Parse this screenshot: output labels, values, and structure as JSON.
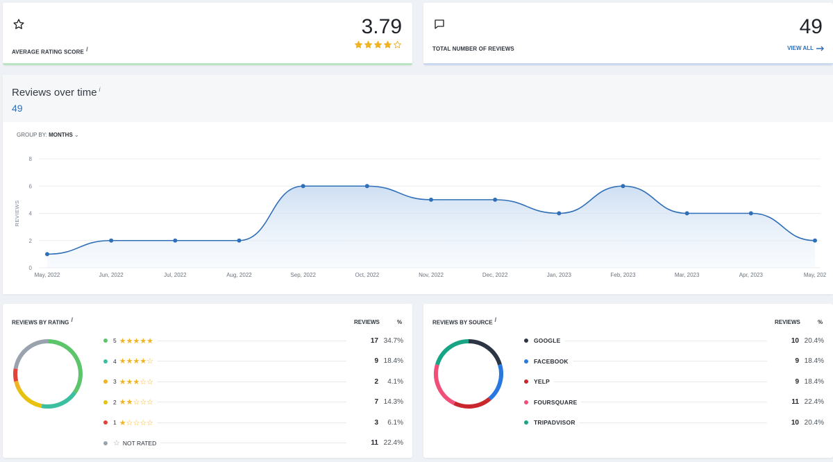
{
  "kpi_rating": {
    "label": "AVERAGE RATING SCORE",
    "info": "i",
    "value": "3.79",
    "stars": 3.79,
    "star_color": "#f0b323"
  },
  "kpi_total": {
    "label": "TOTAL NUMBER OF REVIEWS",
    "value": "49",
    "link": "VIEW ALL"
  },
  "over_time": {
    "title": "Reviews over time",
    "info": "i",
    "count": "49",
    "group_by_label": "GROUP BY:",
    "group_by_value": "MONTHS"
  },
  "chart_data": {
    "type": "area",
    "ylabel": "REVIEWS",
    "ylim": [
      0,
      8
    ],
    "yticks": [
      0,
      2,
      4,
      6,
      8
    ],
    "categories": [
      "May, 2022",
      "Jun, 2022",
      "Jul, 2022",
      "Aug, 2022",
      "Sep, 2022",
      "Oct, 2022",
      "Nov, 2022",
      "Dec, 2022",
      "Jan, 2023",
      "Feb, 2023",
      "Mar, 2023",
      "Apr, 2023",
      "May, 202"
    ],
    "values": [
      1,
      2,
      2,
      2,
      6,
      6,
      5,
      5,
      4,
      6,
      4,
      4,
      2
    ],
    "color": "#2f6fb7",
    "grid": true
  },
  "by_rating": {
    "title": "REVIEWS BY RATING",
    "info": "i",
    "col_reviews": "REVIEWS",
    "col_pct": "%",
    "rows": [
      {
        "label": "5",
        "stars": 5,
        "count": "17",
        "pct": "34.7%",
        "value": 17,
        "color": "#5cc46a"
      },
      {
        "label": "4",
        "stars": 4,
        "count": "9",
        "pct": "18.4%",
        "value": 9,
        "color": "#3cbfa0"
      },
      {
        "label": "3",
        "stars": 3,
        "count": "2",
        "pct": "4.1%",
        "value": 2,
        "color": "#f0b323"
      },
      {
        "label": "2",
        "stars": 2,
        "count": "7",
        "pct": "14.3%",
        "value": 7,
        "color": "#e6c20f"
      },
      {
        "label": "1",
        "stars": 1,
        "count": "3",
        "pct": "6.1%",
        "value": 3,
        "color": "#e0433a"
      },
      {
        "label": "NOT RATED",
        "stars": 0,
        "count": "11",
        "pct": "22.4%",
        "value": 11,
        "color": "#9aa3ad"
      }
    ]
  },
  "by_source": {
    "title": "REVIEWS BY SOURCE",
    "info": "i",
    "col_reviews": "REVIEWS",
    "col_pct": "%",
    "rows": [
      {
        "label": "GOOGLE",
        "count": "10",
        "pct": "20.4%",
        "value": 10,
        "color": "#2c3544"
      },
      {
        "label": "FACEBOOK",
        "count": "9",
        "pct": "18.4%",
        "value": 9,
        "color": "#2878e0"
      },
      {
        "label": "YELP",
        "count": "9",
        "pct": "18.4%",
        "value": 9,
        "color": "#c8282d"
      },
      {
        "label": "FOURSQUARE",
        "count": "11",
        "pct": "22.4%",
        "value": 11,
        "color": "#ef4f78"
      },
      {
        "label": "TRIPADVISOR",
        "count": "10",
        "pct": "20.4%",
        "value": 10,
        "color": "#18a585"
      }
    ]
  }
}
